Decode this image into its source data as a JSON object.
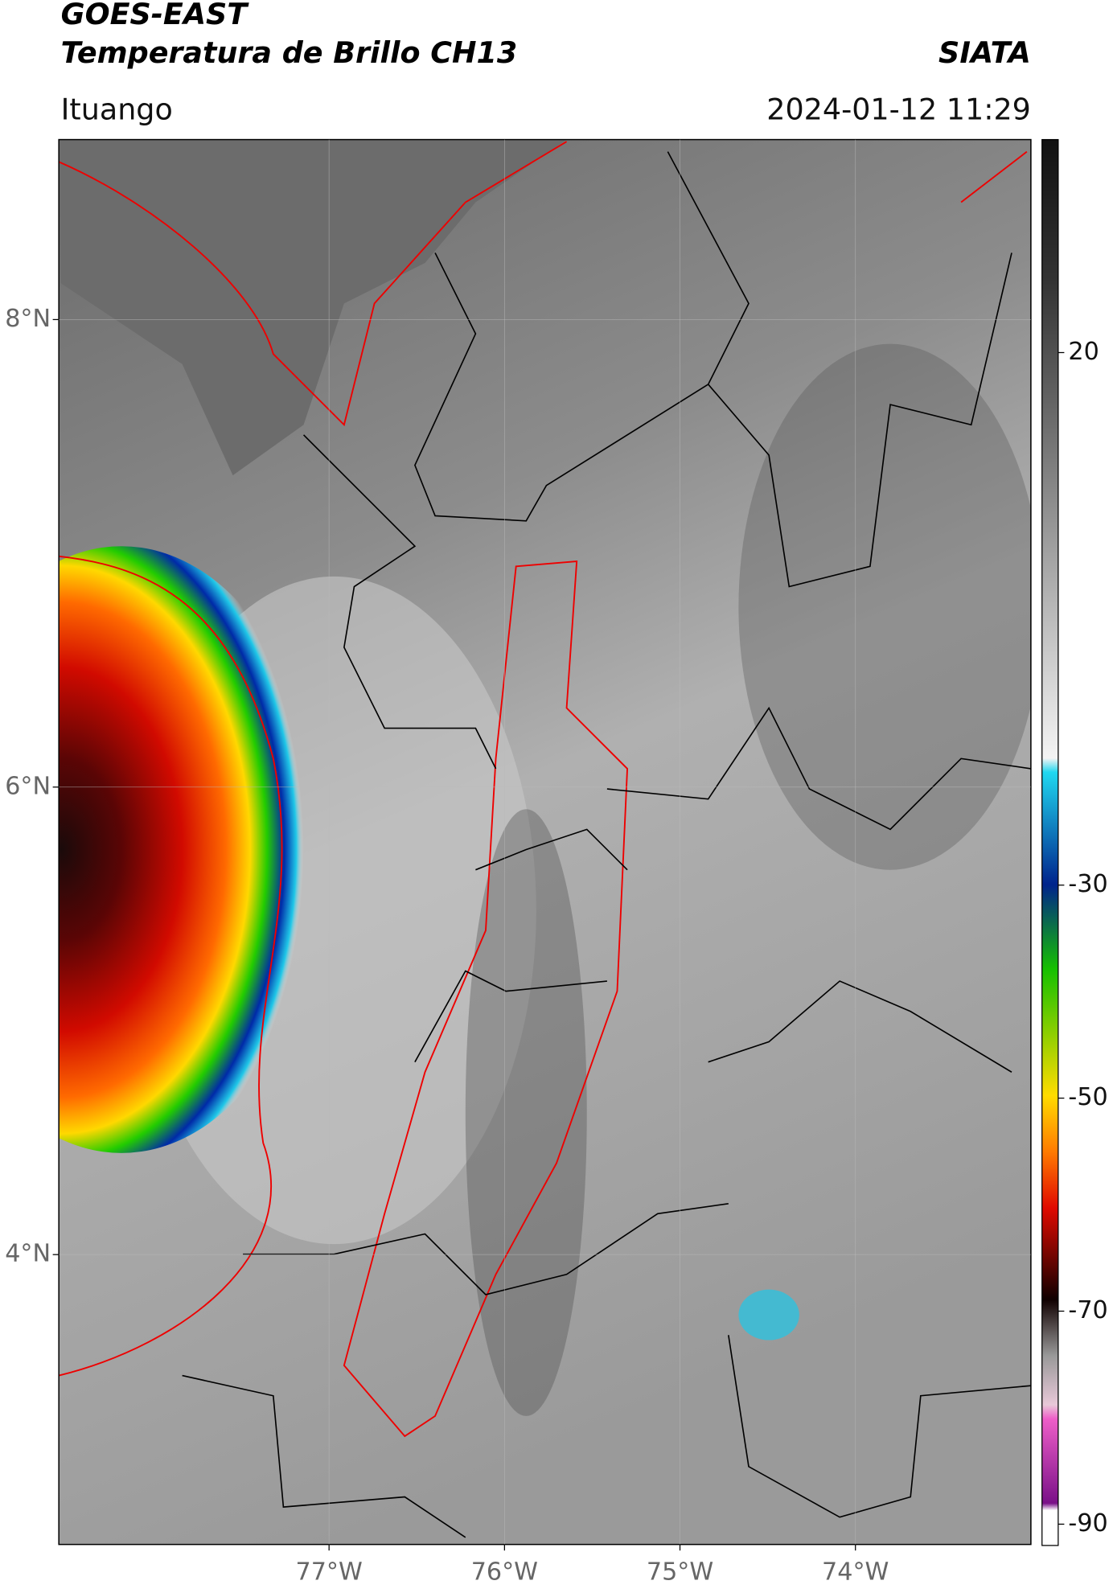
{
  "header": {
    "title": "GOES-EAST",
    "subtitle": "Temperatura de Brillo CH13",
    "credit": "SIATA",
    "location": "Ituango",
    "datetime": "2024-01-12 11:29"
  },
  "map": {
    "lon_range": [
      -78.54,
      -73.0
    ],
    "lat_range": [
      2.76,
      8.77
    ],
    "lat_ticks": [
      {
        "value": 8,
        "label": "8°N"
      },
      {
        "value": 6,
        "label": "6°N"
      },
      {
        "value": 4,
        "label": "4°N"
      }
    ],
    "lon_ticks": [
      {
        "value": -77,
        "label": "77°W"
      },
      {
        "value": -76,
        "label": "76°W"
      },
      {
        "value": -75,
        "label": "75°W"
      },
      {
        "value": -74,
        "label": "74°W"
      }
    ]
  },
  "colorbar": {
    "range": [
      -92,
      40
    ],
    "ticks": [
      20,
      -30,
      -50,
      -70,
      -90
    ]
  }
}
